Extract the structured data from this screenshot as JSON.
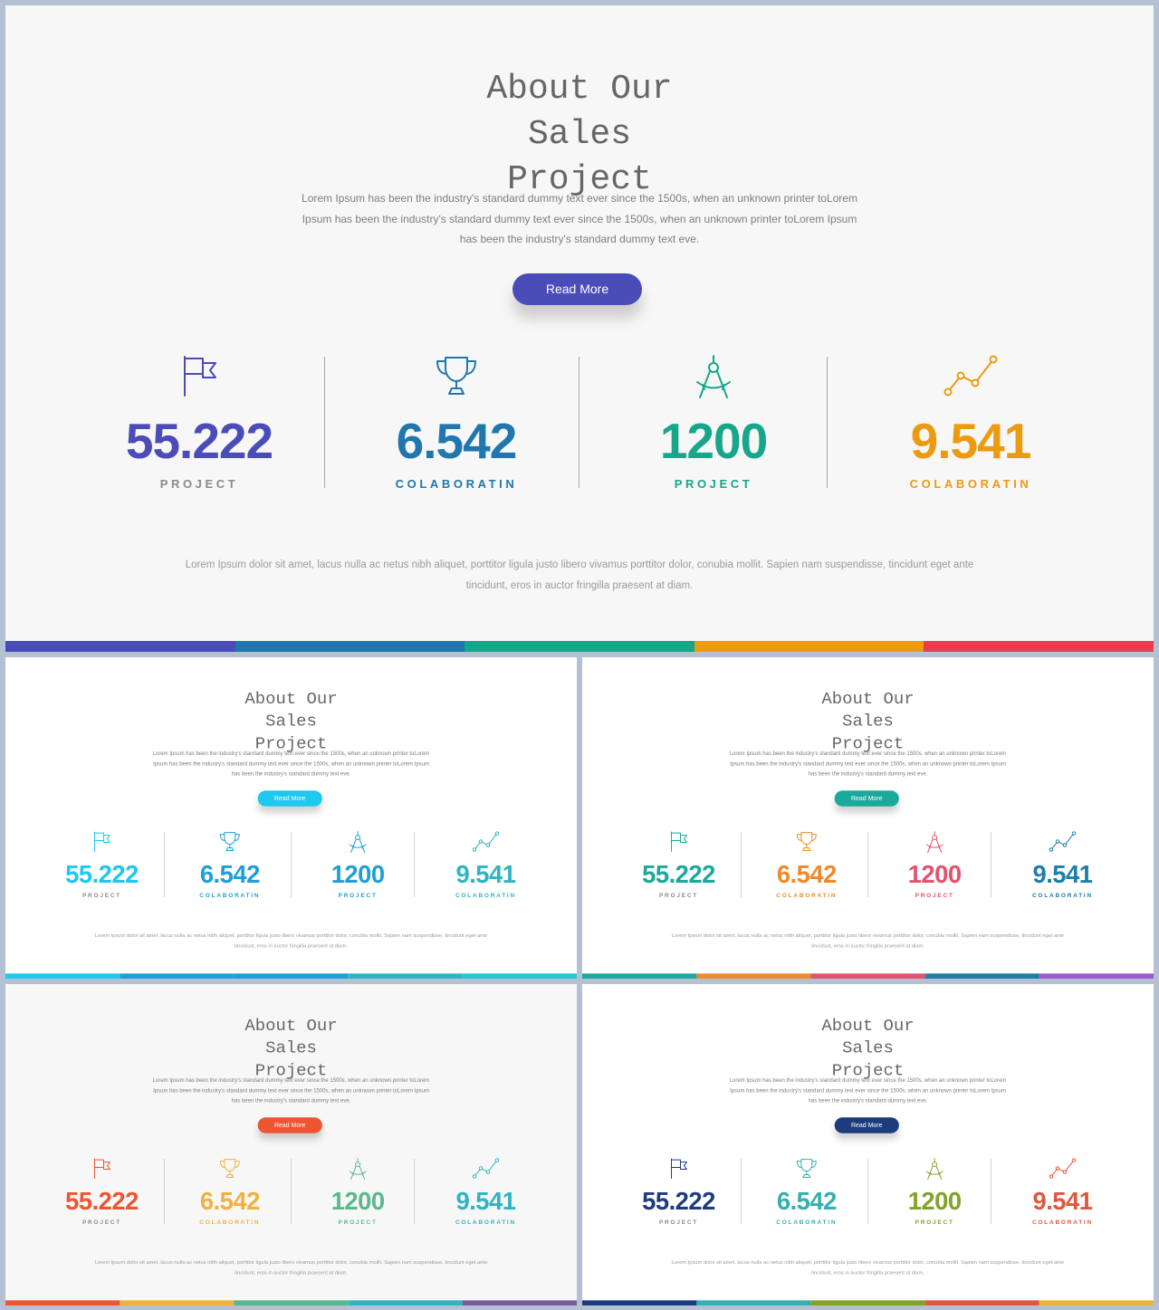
{
  "slides": [
    {
      "title": "About Our\nSales\nProject",
      "description": "Lorem  Ipsum has been  the  industry's standard dummy text ever since the 1500s, when an unknown printer toLorem  Ipsum has been  the  industry's standard dummy text  ever  since the 1500s, when an unknown printer toLorem  Ipsum has been  the  industry's standard dummy text eve.",
      "button_label": "Read More",
      "stats": [
        {
          "value": "55.222",
          "label": "PROJECT",
          "icon": "flag-icon"
        },
        {
          "value": "6.542",
          "label": "COLABORATIN",
          "icon": "trophy-icon"
        },
        {
          "value": "1200",
          "label": "PROJECT",
          "icon": "compass-icon"
        },
        {
          "value": "9.541",
          "label": "COLABORATIN",
          "icon": "line-chart-icon"
        }
      ],
      "footer": "Lorem  Ipsum dolor sit amet,  lacus nulla ac netus nibh aliquet, porttitor ligula justo libero vivamus porttitor dolor, conubia mollit. Sapien nam suspendisse, tincidunt eget  ante tincidunt, eros in auctor fringilla praesent at diam."
    },
    {
      "title": "About Our\nSales\nProject",
      "description": "Lorem  Ipsum has been  the  industry's standard dummy text ever since the 1500s, when an unknown printer toLorem  Ipsum has been  the  industry's standard dummy text  ever  since the 1500s, when an unknown printer toLorem  Ipsum has been  the  industry's standard dummy text eve.",
      "button_label": "Read More",
      "stats": [
        {
          "value": "55.222",
          "label": "PROJECT",
          "icon": "flag-icon"
        },
        {
          "value": "6.542",
          "label": "COLABORATIN",
          "icon": "trophy-icon"
        },
        {
          "value": "1200",
          "label": "PROJECT",
          "icon": "compass-icon"
        },
        {
          "value": "9.541",
          "label": "COLABORATIN",
          "icon": "line-chart-icon"
        }
      ],
      "footer": "Lorem  Ipsum dolor sit amet,  lacus nulla ac netus nibh aliquet, porttitor ligula justo libero vivamus porttitor dolor, conubia mollit. Sapien nam suspendisse, tincidunt eget  ante tincidunt, eros in auctor fringilla praesent at diam."
    },
    {
      "title": "About Our\nSales\nProject",
      "description": "Lorem  Ipsum has been  the  industry's standard dummy text ever since the 1500s, when an unknown printer toLorem  Ipsum has been  the  industry's standard dummy text  ever  since the 1500s, when an unknown printer toLorem  Ipsum has been  the  industry's standard dummy text eve.",
      "button_label": "Read More",
      "stats": [
        {
          "value": "55.222",
          "label": "PROJECT",
          "icon": "flag-icon"
        },
        {
          "value": "6.542",
          "label": "COLABORATIN",
          "icon": "trophy-icon"
        },
        {
          "value": "1200",
          "label": "PROJECT",
          "icon": "compass-icon"
        },
        {
          "value": "9.541",
          "label": "COLABORATIN",
          "icon": "line-chart-icon"
        }
      ],
      "footer": "Lorem  Ipsum dolor sit amet,  lacus nulla ac netus nibh aliquet, porttitor ligula justo libero vivamus porttitor dolor, conubia mollit. Sapien nam suspendisse, tincidunt eget  ante tincidunt, eros in auctor fringilla praesent at diam."
    },
    {
      "title": "About Our\nSales\nProject",
      "description": "Lorem  Ipsum has been  the  industry's standard dummy text ever since the 1500s, when an unknown printer toLorem  Ipsum has been  the  industry's standard dummy text  ever  since the 1500s, when an unknown printer toLorem  Ipsum has been  the  industry's standard dummy text eve.",
      "button_label": "Read More",
      "stats": [
        {
          "value": "55.222",
          "label": "PROJECT",
          "icon": "flag-icon"
        },
        {
          "value": "6.542",
          "label": "COLABORATIN",
          "icon": "trophy-icon"
        },
        {
          "value": "1200",
          "label": "PROJECT",
          "icon": "compass-icon"
        },
        {
          "value": "9.541",
          "label": "COLABORATIN",
          "icon": "line-chart-icon"
        }
      ],
      "footer": "Lorem  Ipsum dolor sit amet,  lacus nulla ac netus nibh aliquet, porttitor ligula justo libero vivamus porttitor dolor, conubia mollit. Sapien nam suspendisse, tincidunt eget  ante tincidunt, eros in auctor fringilla praesent at diam."
    },
    {
      "title": "About Our\nSales\nProject",
      "description": "Lorem  Ipsum has been  the  industry's standard dummy text ever since the 1500s, when an unknown printer toLorem  Ipsum has been  the  industry's standard dummy text  ever  since the 1500s, when an unknown printer toLorem  Ipsum has been  the  industry's standard dummy text eve.",
      "button_label": "Read More",
      "stats": [
        {
          "value": "55.222",
          "label": "PROJECT",
          "icon": "flag-icon"
        },
        {
          "value": "6.542",
          "label": "COLABORATIN",
          "icon": "trophy-icon"
        },
        {
          "value": "1200",
          "label": "PROJECT",
          "icon": "compass-icon"
        },
        {
          "value": "9.541",
          "label": "COLABORATIN",
          "icon": "line-chart-icon"
        }
      ],
      "footer": "Lorem  Ipsum dolor sit amet,  lacus nulla ac netus nibh aliquet, porttitor ligula justo libero vivamus porttitor dolor, conubia mollit. Sapien nam suspendisse, tincidunt eget  ante tincidunt, eros in auctor fringilla praesent at diam."
    }
  ],
  "themes": [
    {
      "background": "#f7f7f7",
      "button": "#4a4cb8",
      "stat_colors": [
        "#4a4cb8",
        "#1f77ad",
        "#16a68a",
        "#ec9a10"
      ],
      "label_colors": [
        "#8a8a8a",
        "#1f77ad",
        "#16a68a",
        "#ec9a10"
      ],
      "bar_colors": [
        "#4a4cb8",
        "#1f77ad",
        "#16a68a",
        "#ec9a10",
        "#e83d50"
      ]
    },
    {
      "background": "#ffffff",
      "button": "#1ec8ee",
      "stat_colors": [
        "#1ec8ee",
        "#1e9fd6",
        "#1e9fd6",
        "#2fb4c2"
      ],
      "label_colors": [
        "#8a8a8a",
        "#1e9fd6",
        "#1e9fd6",
        "#2fb4c2"
      ],
      "bar_colors": [
        "#1ec8ee",
        "#1e9fd6",
        "#1e9fd6",
        "#2fb4c2",
        "#23c8d6"
      ]
    },
    {
      "background": "#ffffff",
      "button": "#1aa99a",
      "stat_colors": [
        "#1aa99a",
        "#ee8a2c",
        "#e5516e",
        "#1e7eaa"
      ],
      "label_colors": [
        "#8a8a8a",
        "#ee8a2c",
        "#e5516e",
        "#1e7eaa"
      ],
      "bar_colors": [
        "#1aa99a",
        "#ee8a2c",
        "#e5516e",
        "#1e7eaa",
        "#9b59d0"
      ]
    },
    {
      "background": "#f7f7f7",
      "button": "#ee5532",
      "stat_colors": [
        "#ee5532",
        "#f2b13c",
        "#5ab88e",
        "#2fb4c2"
      ],
      "label_colors": [
        "#8a8a8a",
        "#f2b13c",
        "#5ab88e",
        "#2fb4c2"
      ],
      "bar_colors": [
        "#ee5532",
        "#f2b13c",
        "#5ab88e",
        "#2fb4c2",
        "#7c5a9a"
      ]
    },
    {
      "background": "#ffffff",
      "button": "#1d3c7e",
      "stat_colors": [
        "#1d3c7e",
        "#35b0b0",
        "#82a327",
        "#e0573d"
      ],
      "label_colors": [
        "#8a8a8a",
        "#35b0b0",
        "#82a327",
        "#e0573d"
      ],
      "bar_colors": [
        "#1d3c7e",
        "#35b0b0",
        "#82a327",
        "#e0573d",
        "#ecb33a"
      ]
    }
  ]
}
